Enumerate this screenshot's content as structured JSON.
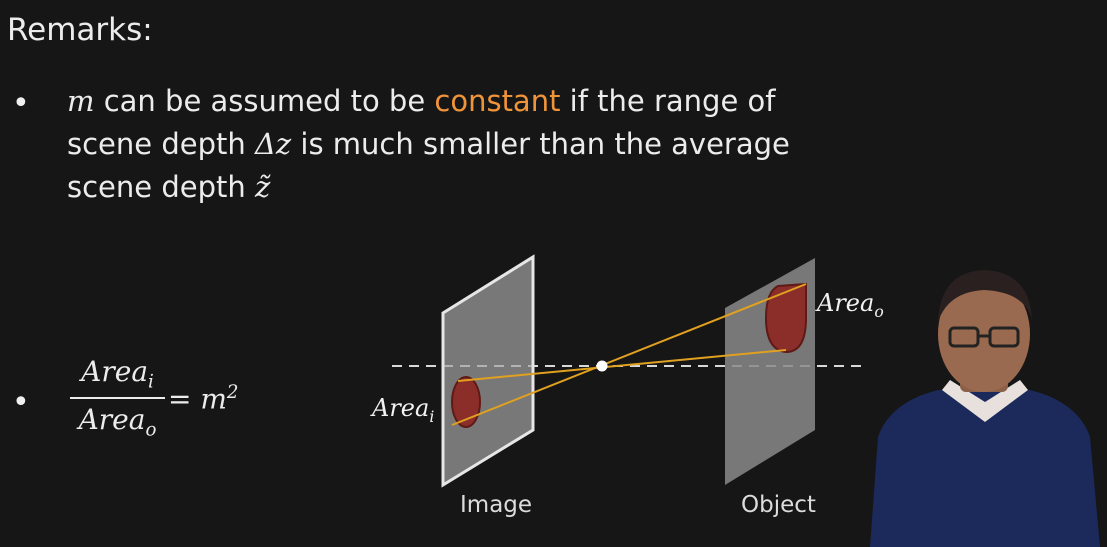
{
  "slide": {
    "title": "Remarks:",
    "bullet_symbol": "•",
    "bullet1": {
      "var_m": "m",
      "text_a": " can be assumed to be ",
      "highlight": "constant",
      "text_b": " if the range of",
      "line2_a": "scene depth ",
      "delta_z": "Δz",
      "line2_b": " is much smaller than the average",
      "line3_a": "scene depth ",
      "z_tilde": "z̃"
    },
    "bullet2": {
      "num_base": "Area",
      "num_sub": "i",
      "den_base": "Area",
      "den_sub": "o",
      "rhs": "= m",
      "rhs_sup": "2"
    }
  },
  "diagram": {
    "image_plane_label": "Image",
    "object_plane_label": "Object",
    "area_i_base": "Area",
    "area_i_sub": "i",
    "area_o_base": "Area",
    "area_o_sub": "o"
  },
  "colors": {
    "background": "#161616",
    "accent": "#f0943a",
    "ray": "#e0a020",
    "plane": "#8a8a8a",
    "blob": "#8b2e2a"
  }
}
